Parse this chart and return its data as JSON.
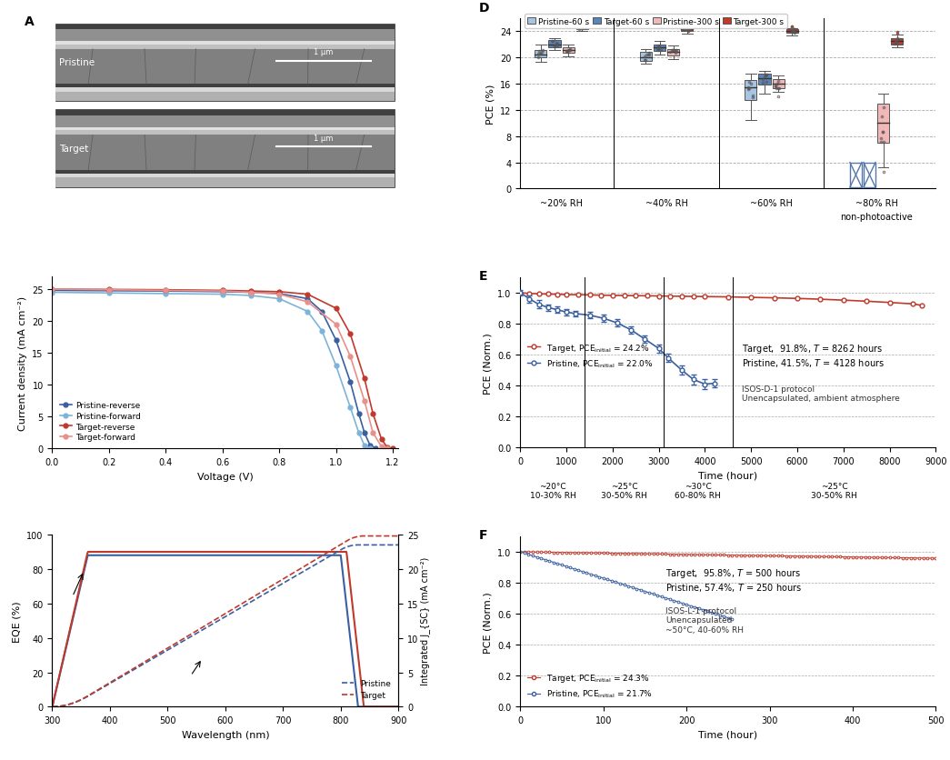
{
  "B_xlabel": "Voltage (V)",
  "B_ylabel": "Current density (mA cm⁻²)",
  "B_xlim": [
    0.0,
    1.22
  ],
  "B_ylim": [
    0,
    27
  ],
  "B_yticks": [
    0,
    5,
    10,
    15,
    20,
    25
  ],
  "B_xticks": [
    0.0,
    0.2,
    0.4,
    0.6,
    0.8,
    1.0,
    1.2
  ],
  "B_colors": {
    "pristine_reverse": "#3A5FA0",
    "pristine_forward": "#7EB3D8",
    "target_reverse": "#C0392B",
    "target_forward": "#E8908A"
  },
  "C_xlabel": "Wavelength (nm)",
  "C_ylabel1": "EQE (%)",
  "C_ylabel2": "Integrated J_{SC} (mA cm⁻²)",
  "C_xlim": [
    300,
    900
  ],
  "C_ylim1": [
    0,
    100
  ],
  "C_ylim2": [
    0,
    25
  ],
  "C_yticks1": [
    0,
    20,
    40,
    60,
    80,
    100
  ],
  "C_yticks2": [
    0,
    5,
    10,
    15,
    20,
    25
  ],
  "D_ylabel": "PCE (%)",
  "D_ylim": [
    0,
    26
  ],
  "D_yticks": [
    0,
    4,
    8,
    12,
    16,
    20,
    24
  ],
  "D_groups": [
    "~20% RH",
    "~40% RH",
    "~60% RH",
    "~80% RH"
  ],
  "D_colors": {
    "pristine_60": "#A8C4E0",
    "target_60": "#5B84B8",
    "pristine_300": "#F2B8B8",
    "target_300": "#C0392B"
  },
  "D_box_data": {
    "20rh": {
      "p60": {
        "med": 20.5,
        "q1": 20.0,
        "q3": 21.2,
        "whislo": 19.3,
        "whishi": 21.9
      },
      "t60": {
        "med": 22.0,
        "q1": 21.6,
        "q3": 22.6,
        "whislo": 21.2,
        "whishi": 23.0
      },
      "p300": {
        "med": 21.2,
        "q1": 20.7,
        "q3": 21.6,
        "whislo": 20.2,
        "whishi": 22.0
      },
      "t300": {
        "med": 24.5,
        "q1": 24.3,
        "q3": 24.7,
        "whislo": 24.1,
        "whishi": 24.9,
        "fliers_hi": [
          25.0,
          25.1,
          25.15,
          25.2
        ]
      }
    },
    "40rh": {
      "p60": {
        "med": 20.0,
        "q1": 19.5,
        "q3": 20.8,
        "whislo": 19.0,
        "whishi": 21.3
      },
      "t60": {
        "med": 21.5,
        "q1": 21.0,
        "q3": 22.0,
        "whislo": 20.5,
        "whishi": 22.5
      },
      "p300": {
        "med": 20.8,
        "q1": 20.3,
        "q3": 21.3,
        "whislo": 19.8,
        "whishi": 21.8
      },
      "t300": {
        "med": 24.3,
        "q1": 24.0,
        "q3": 24.6,
        "whislo": 23.7,
        "whishi": 24.8,
        "fliers_hi": [
          24.9,
          25.0,
          25.1
        ]
      }
    },
    "60rh": {
      "p60": {
        "med": 15.5,
        "q1": 13.5,
        "q3": 16.5,
        "whislo": 10.5,
        "whishi": 17.5
      },
      "t60": {
        "med": 16.8,
        "q1": 15.8,
        "q3": 17.5,
        "whislo": 14.5,
        "whishi": 18.0
      },
      "p300": {
        "med": 16.0,
        "q1": 15.3,
        "q3": 16.7,
        "whislo": 14.8,
        "whishi": 17.2,
        "fliers_lo": [
          14.0
        ]
      },
      "t300": {
        "med": 24.0,
        "q1": 23.8,
        "q3": 24.3,
        "whislo": 23.3,
        "whishi": 24.5,
        "fliers_hi": [
          24.6,
          24.7,
          24.8
        ]
      }
    },
    "80rh": {
      "p60": null,
      "t60": null,
      "p300": {
        "med": 10.0,
        "q1": 7.0,
        "q3": 13.0,
        "whislo": 3.2,
        "whishi": 14.5,
        "fliers_lo": [
          2.5
        ]
      },
      "t300": {
        "med": 22.5,
        "q1": 22.0,
        "q3": 23.0,
        "whislo": 21.5,
        "whishi": 23.5,
        "fliers_hi": [
          23.7,
          23.9
        ]
      }
    }
  },
  "E_xlabel": "Time (hour)",
  "E_ylabel": "PCE (Norm.)",
  "E_xlim": [
    0,
    9000
  ],
  "E_ylim": [
    0.0,
    1.1
  ],
  "E_yticks": [
    0.0,
    0.2,
    0.4,
    0.6,
    0.8,
    1.0
  ],
  "E_xticks": [
    0,
    1000,
    2000,
    3000,
    4000,
    5000,
    6000,
    7000,
    8000,
    9000
  ],
  "E_target_color": "#C0392B",
  "E_pristine_color": "#3A5FA0",
  "E_target_data_x": [
    0,
    200,
    400,
    600,
    800,
    1000,
    1250,
    1500,
    1750,
    2000,
    2250,
    2500,
    2750,
    3000,
    3250,
    3500,
    3750,
    4000,
    4500,
    5000,
    5500,
    6000,
    6500,
    7000,
    7500,
    8000,
    8500,
    8700
  ],
  "E_target_data_y": [
    1.0,
    0.995,
    0.993,
    0.991,
    0.99,
    0.988,
    0.987,
    0.986,
    0.984,
    0.983,
    0.982,
    0.981,
    0.98,
    0.979,
    0.978,
    0.977,
    0.976,
    0.975,
    0.973,
    0.97,
    0.967,
    0.963,
    0.958,
    0.952,
    0.945,
    0.937,
    0.928,
    0.918
  ],
  "E_pristine_data_x": [
    0,
    200,
    400,
    600,
    800,
    1000,
    1200,
    1500,
    1800,
    2100,
    2400,
    2700,
    3000,
    3200,
    3500,
    3750,
    4000,
    4200
  ],
  "E_pristine_data_y": [
    1.0,
    0.96,
    0.925,
    0.905,
    0.89,
    0.875,
    0.865,
    0.855,
    0.835,
    0.805,
    0.76,
    0.7,
    0.64,
    0.58,
    0.5,
    0.44,
    0.41,
    0.415
  ],
  "E_pristine_err": [
    0.02,
    0.025,
    0.025,
    0.02,
    0.02,
    0.02,
    0.02,
    0.02,
    0.025,
    0.025,
    0.025,
    0.025,
    0.025,
    0.025,
    0.03,
    0.03,
    0.03,
    0.025
  ],
  "F_xlabel": "Time (hour)",
  "F_ylabel": "PCE (Norm.)",
  "F_xlim": [
    0,
    500
  ],
  "F_ylim": [
    0.0,
    1.1
  ],
  "F_yticks": [
    0.0,
    0.2,
    0.4,
    0.6,
    0.8,
    1.0
  ],
  "F_xticks": [
    0,
    100,
    200,
    300,
    400,
    500
  ],
  "F_target_color": "#C0392B",
  "F_pristine_color": "#3A5FA0"
}
